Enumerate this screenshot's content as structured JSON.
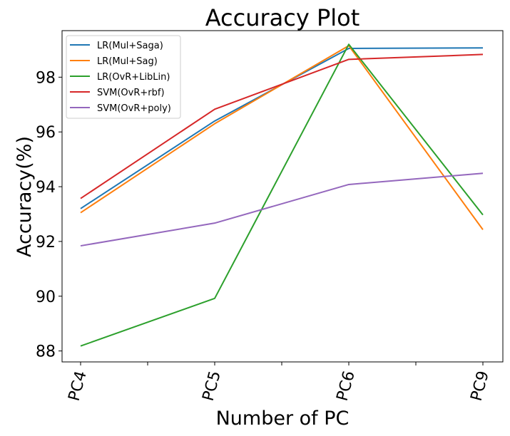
{
  "chart_data": {
    "type": "line",
    "title": "Accuracy Plot",
    "xlabel": "Number of PC",
    "ylabel": "Accuracy(%)",
    "categories": [
      "PC4",
      "PC5",
      "PC6",
      "PC9"
    ],
    "ylim": [
      87.6,
      99.7
    ],
    "yticks": [
      88,
      90,
      92,
      94,
      96,
      98
    ],
    "grid": false,
    "legend_position": "top-left",
    "series": [
      {
        "name": "LR(Mul+Saga)",
        "color": "#1f77b4",
        "values": [
          93.2,
          96.4,
          99.05,
          99.07
        ]
      },
      {
        "name": "LR(Mul+Sag)",
        "color": "#ff7f0e",
        "values": [
          93.05,
          96.3,
          99.15,
          92.43
        ]
      },
      {
        "name": "LR(OvR+LibLin)",
        "color": "#2ca02c",
        "values": [
          88.18,
          89.92,
          99.2,
          92.97
        ]
      },
      {
        "name": "SVM(OvR+rbf)",
        "color": "#d62728",
        "values": [
          93.57,
          96.83,
          98.65,
          98.83
        ]
      },
      {
        "name": "SVM(OvR+poly)",
        "color": "#9467bd",
        "values": [
          91.84,
          92.67,
          94.08,
          94.49
        ]
      }
    ]
  }
}
